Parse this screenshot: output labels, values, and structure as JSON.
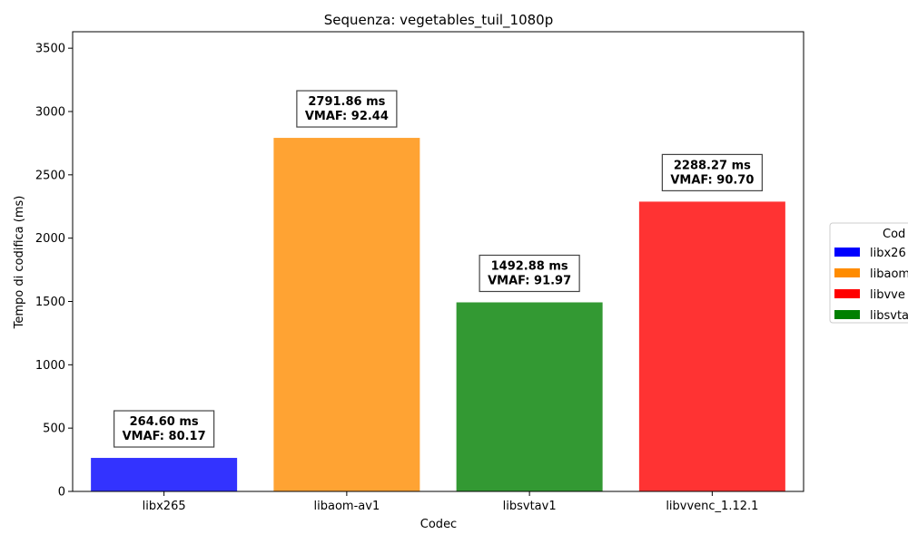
{
  "chart_data": {
    "type": "bar",
    "title": "Sequenza: vegetables_tuil_1080p",
    "xlabel": "Codec",
    "ylabel": "Tempo di codifica (ms)",
    "ylim": [
      0,
      3630
    ],
    "yticks": [
      0,
      500,
      1000,
      1500,
      2000,
      2500,
      3000,
      3500
    ],
    "grid": false,
    "categories": [
      "libx265",
      "libaom-av1",
      "libsvtav1",
      "libvvenc_1.12.1"
    ],
    "values": [
      264.6,
      2791.86,
      1492.88,
      2288.27
    ],
    "colors": [
      "#3333ff",
      "#ffa333",
      "#339933",
      "#ff3333"
    ],
    "annotations": [
      {
        "line1": "264.60 ms",
        "line2": "VMAF: 80.17"
      },
      {
        "line1": "2791.86 ms",
        "line2": "VMAF: 92.44"
      },
      {
        "line1": "1492.88 ms",
        "line2": "VMAF: 91.97"
      },
      {
        "line1": "2288.27 ms",
        "line2": "VMAF: 90.70"
      }
    ],
    "legend": {
      "title": "Cod",
      "placement": "right",
      "entries": [
        {
          "label": "libx26",
          "color": "#0000ff"
        },
        {
          "label": "libaom",
          "color": "#ff8c00"
        },
        {
          "label": "libvve",
          "color": "#ff0000"
        },
        {
          "label": "libsvta",
          "color": "#008000"
        }
      ]
    }
  }
}
